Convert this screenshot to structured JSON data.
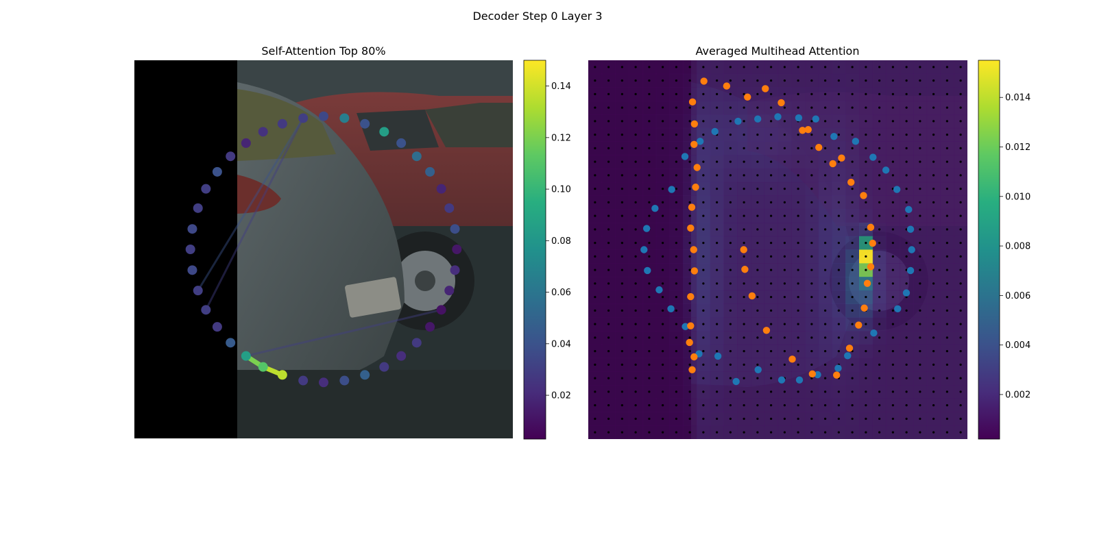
{
  "figure": {
    "suptitle": "Decoder Step 0 Layer 3"
  },
  "chart_data": [
    {
      "type": "scatter",
      "title": "Self-Attention Top 80%",
      "xlabel": "",
      "ylabel": "",
      "xlim": [
        0,
        1
      ],
      "ylim": [
        0,
        1
      ],
      "grid": false,
      "colormap": "viridis",
      "colorbar": {
        "min": 0.003,
        "max": 0.15,
        "ticks": [
          0.02,
          0.04,
          0.06,
          0.08,
          0.1,
          0.12,
          0.14
        ],
        "tick_labels": [
          "0.02",
          "0.04",
          "0.06",
          "0.08",
          "0.10",
          "0.12",
          "0.14"
        ]
      },
      "background": "dark street photo of parked cars, left ~27% black padding",
      "points": [
        {
          "x": 0.446,
          "y": 0.847,
          "v": 0.028
        },
        {
          "x": 0.5,
          "y": 0.852,
          "v": 0.022
        },
        {
          "x": 0.555,
          "y": 0.847,
          "v": 0.038
        },
        {
          "x": 0.609,
          "y": 0.832,
          "v": 0.048
        },
        {
          "x": 0.66,
          "y": 0.811,
          "v": 0.028
        },
        {
          "x": 0.705,
          "y": 0.782,
          "v": 0.022
        },
        {
          "x": 0.746,
          "y": 0.747,
          "v": 0.028
        },
        {
          "x": 0.781,
          "y": 0.705,
          "v": 0.012
        },
        {
          "x": 0.811,
          "y": 0.66,
          "v": 0.01
        },
        {
          "x": 0.832,
          "y": 0.609,
          "v": 0.018
        },
        {
          "x": 0.847,
          "y": 0.555,
          "v": 0.022
        },
        {
          "x": 0.852,
          "y": 0.5,
          "v": 0.012
        },
        {
          "x": 0.847,
          "y": 0.446,
          "v": 0.038
        },
        {
          "x": 0.832,
          "y": 0.391,
          "v": 0.028
        },
        {
          "x": 0.811,
          "y": 0.34,
          "v": 0.018
        },
        {
          "x": 0.781,
          "y": 0.295,
          "v": 0.048
        },
        {
          "x": 0.746,
          "y": 0.254,
          "v": 0.055
        },
        {
          "x": 0.705,
          "y": 0.219,
          "v": 0.04
        },
        {
          "x": 0.609,
          "y": 0.168,
          "v": 0.04
        },
        {
          "x": 0.555,
          "y": 0.153,
          "v": 0.065
        },
        {
          "x": 0.5,
          "y": 0.148,
          "v": 0.035
        },
        {
          "x": 0.446,
          "y": 0.153,
          "v": 0.03
        },
        {
          "x": 0.391,
          "y": 0.168,
          "v": 0.028
        },
        {
          "x": 0.34,
          "y": 0.189,
          "v": 0.024
        },
        {
          "x": 0.295,
          "y": 0.219,
          "v": 0.018
        },
        {
          "x": 0.254,
          "y": 0.254,
          "v": 0.028
        },
        {
          "x": 0.219,
          "y": 0.295,
          "v": 0.04
        },
        {
          "x": 0.189,
          "y": 0.34,
          "v": 0.03
        },
        {
          "x": 0.168,
          "y": 0.391,
          "v": 0.03
        },
        {
          "x": 0.153,
          "y": 0.446,
          "v": 0.035
        },
        {
          "x": 0.148,
          "y": 0.5,
          "v": 0.03
        },
        {
          "x": 0.153,
          "y": 0.555,
          "v": 0.035
        },
        {
          "x": 0.168,
          "y": 0.609,
          "v": 0.03
        },
        {
          "x": 0.189,
          "y": 0.66,
          "v": 0.03
        },
        {
          "x": 0.219,
          "y": 0.705,
          "v": 0.028
        },
        {
          "x": 0.254,
          "y": 0.747,
          "v": 0.045
        },
        {
          "x": 0.295,
          "y": 0.782,
          "v": 0.085
        },
        {
          "x": 0.34,
          "y": 0.811,
          "v": 0.11
        },
        {
          "x": 0.391,
          "y": 0.832,
          "v": 0.135
        },
        {
          "x": 0.66,
          "y": 0.189,
          "v": 0.085
        }
      ],
      "edges": [
        {
          "from": 37,
          "to": 38,
          "v": 0.135
        },
        {
          "from": 36,
          "to": 37,
          "v": 0.12
        },
        {
          "from": 36,
          "to": 8,
          "v": 0.03
        },
        {
          "from": 32,
          "to": 21,
          "v": 0.04
        },
        {
          "from": 33,
          "to": 21,
          "v": 0.03
        }
      ]
    },
    {
      "type": "heatmap",
      "title": "Averaged Multihead Attention",
      "xlabel": "",
      "ylabel": "",
      "grid_cells": [
        28,
        28
      ],
      "colormap": "viridis",
      "colorbar": {
        "min": 0.0002,
        "max": 0.0155,
        "ticks": [
          0.002,
          0.004,
          0.006,
          0.008,
          0.01,
          0.012,
          0.014
        ],
        "tick_labels": [
          "0.002",
          "0.004",
          "0.006",
          "0.008",
          "0.010",
          "0.012",
          "0.014"
        ]
      },
      "peak_value": 0.0155,
      "background": "same street photo behind attention overlay",
      "series": [
        {
          "color": "#1f77b4",
          "points": [
            [
              0.147,
              0.5
            ],
            [
              0.154,
              0.444
            ],
            [
              0.156,
              0.555
            ],
            [
              0.176,
              0.391
            ],
            [
              0.187,
              0.606
            ],
            [
              0.218,
              0.656
            ],
            [
              0.22,
              0.341
            ],
            [
              0.255,
              0.254
            ],
            [
              0.256,
              0.703
            ],
            [
              0.295,
              0.214
            ],
            [
              0.292,
              0.775
            ],
            [
              0.334,
              0.188
            ],
            [
              0.342,
              0.781
            ],
            [
              0.395,
              0.161
            ],
            [
              0.39,
              0.848
            ],
            [
              0.447,
              0.155
            ],
            [
              0.448,
              0.817
            ],
            [
              0.5,
              0.149
            ],
            [
              0.51,
              0.844
            ],
            [
              0.555,
              0.152
            ],
            [
              0.557,
              0.844
            ],
            [
              0.6,
              0.155
            ],
            [
              0.605,
              0.83
            ],
            [
              0.648,
              0.201
            ],
            [
              0.659,
              0.813
            ],
            [
              0.684,
              0.78
            ],
            [
              0.705,
              0.214
            ],
            [
              0.751,
              0.256
            ],
            [
              0.753,
              0.72
            ],
            [
              0.785,
              0.29
            ],
            [
              0.814,
              0.341
            ],
            [
              0.816,
              0.656
            ],
            [
              0.845,
              0.394
            ],
            [
              0.85,
              0.555
            ],
            [
              0.853,
              0.5
            ],
            [
              0.85,
              0.446
            ],
            [
              0.839,
              0.614
            ]
          ]
        },
        {
          "color": "#ff7f0e",
          "points": [
            [
              0.267,
              0.745
            ],
            [
              0.279,
              0.783
            ],
            [
              0.274,
              0.817
            ],
            [
              0.27,
              0.701
            ],
            [
              0.27,
              0.624
            ],
            [
              0.28,
              0.556
            ],
            [
              0.278,
              0.5
            ],
            [
              0.27,
              0.443
            ],
            [
              0.273,
              0.388
            ],
            [
              0.283,
              0.335
            ],
            [
              0.287,
              0.283
            ],
            [
              0.279,
              0.222
            ],
            [
              0.28,
              0.168
            ],
            [
              0.275,
              0.11
            ],
            [
              0.305,
              0.055
            ],
            [
              0.365,
              0.068
            ],
            [
              0.42,
              0.097
            ],
            [
              0.467,
              0.075
            ],
            [
              0.509,
              0.112
            ],
            [
              0.565,
              0.185
            ],
            [
              0.58,
              0.183
            ],
            [
              0.608,
              0.23
            ],
            [
              0.645,
              0.273
            ],
            [
              0.668,
              0.258
            ],
            [
              0.693,
              0.322
            ],
            [
              0.726,
              0.357
            ],
            [
              0.745,
              0.441
            ],
            [
              0.75,
              0.483
            ],
            [
              0.745,
              0.545
            ],
            [
              0.736,
              0.589
            ],
            [
              0.728,
              0.654
            ],
            [
              0.713,
              0.699
            ],
            [
              0.689,
              0.76
            ],
            [
              0.655,
              0.831
            ],
            [
              0.591,
              0.828
            ],
            [
              0.538,
              0.789
            ],
            [
              0.47,
              0.713
            ],
            [
              0.432,
              0.622
            ],
            [
              0.413,
              0.552
            ],
            [
              0.41,
              0.5
            ]
          ]
        }
      ]
    }
  ]
}
